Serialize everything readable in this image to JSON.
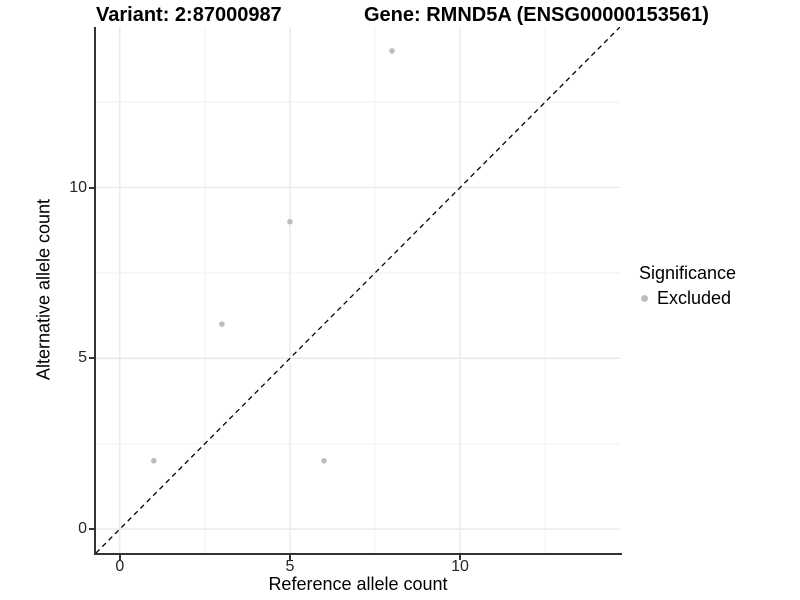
{
  "title": {
    "variant": "Variant: 2:87000987",
    "gene": "Gene: RMND5A (ENSG00000153561)"
  },
  "chart_data": {
    "type": "scatter",
    "title_left": "Variant: 2:87000987",
    "title_right": "Gene: RMND5A (ENSG00000153561)",
    "xlabel": "Reference allele count",
    "ylabel": "Alternative allele count",
    "xlim": [
      -0.7,
      14.7
    ],
    "ylim": [
      -0.7,
      14.7
    ],
    "x_major_ticks": [
      0,
      5,
      10
    ],
    "x_minor_ticks": [
      2.5,
      7.5,
      12.5
    ],
    "y_major_ticks": [
      0,
      5,
      10
    ],
    "y_minor_ticks": [
      2.5,
      7.5,
      12.5
    ],
    "series": [
      {
        "name": "Excluded",
        "color": "#bdbdbd",
        "points": [
          [
            1,
            2
          ],
          [
            3,
            6
          ],
          [
            5,
            9
          ],
          [
            6,
            2
          ],
          [
            8,
            14
          ]
        ]
      }
    ],
    "reference_line": {
      "equation": "y = x",
      "style": "dashed",
      "color": "#000000",
      "from": [
        -0.7,
        -0.7
      ],
      "to": [
        14.7,
        14.7
      ]
    },
    "legend": {
      "title": "Significance",
      "position": "right",
      "items": [
        {
          "label": "Excluded",
          "color": "#bdbdbd",
          "marker": "circle"
        }
      ]
    },
    "grid": {
      "major": true,
      "minor": true,
      "major_color": "#e7e7e7",
      "minor_color": "#f2f2f2"
    },
    "background": "#ffffff",
    "point_radius_px": 2.8
  },
  "colors": {
    "axis_line": "#333333",
    "tick_text": "#262626",
    "title_text": "#000000",
    "point": "#bdbdbd"
  }
}
